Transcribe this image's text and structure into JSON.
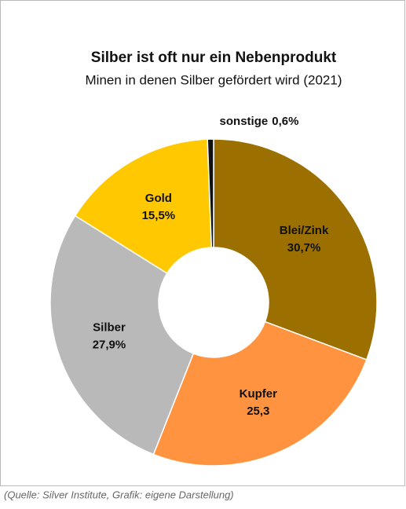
{
  "chart_data": {
    "type": "donut",
    "title": "Silber ist oft nur ein Nebenprodukt",
    "subtitle": "Minen in denen Silber gefördert wird (2021)",
    "categories": [
      "Blei/Zink",
      "Kupfer",
      "Silber",
      "Gold",
      "sonstige"
    ],
    "values": [
      30.7,
      25.3,
      27.9,
      15.5,
      0.6
    ],
    "value_labels": [
      "30,7%",
      "25,3",
      "27,9%",
      "15,5%",
      "0,6%"
    ],
    "colors": [
      "#9b7000",
      "#ff9340",
      "#b9b9b9",
      "#ffc800",
      "#111111"
    ],
    "source": "(Quelle: Silver Institute, Grafik: eigene Darstellung)"
  }
}
